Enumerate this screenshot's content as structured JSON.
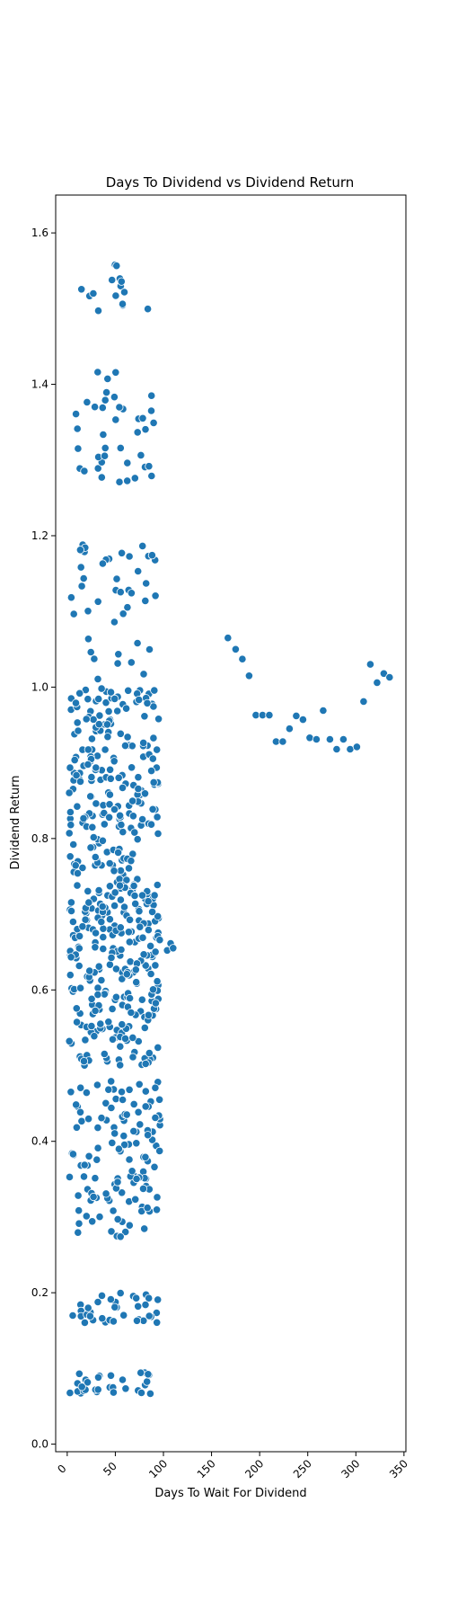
{
  "chart_data": {
    "type": "scatter",
    "title": "Days To Dividend vs Dividend Return",
    "xlabel": "Days To Wait For Dividend",
    "ylabel": "Dividend Return",
    "xlim": [
      -12,
      352
    ],
    "ylim": [
      -0.01,
      1.65
    ],
    "xticks": [
      0,
      50,
      100,
      150,
      200,
      250,
      300,
      350
    ],
    "yticks": [
      0.0,
      0.2,
      0.4,
      0.6,
      0.8,
      1.0,
      1.2,
      1.4,
      1.6
    ],
    "grid": false,
    "legend": "none",
    "colors": {
      "marker": "#1f77b4",
      "marker_edge": "#ffffff",
      "axis": "#000000"
    },
    "clusters": [
      {
        "x_min": 2,
        "x_max": 90,
        "y_min": 1.49,
        "y_max": 1.565,
        "count": 16
      },
      {
        "x_min": 2,
        "x_max": 90,
        "y_min": 1.27,
        "y_max": 1.42,
        "count": 40
      },
      {
        "x_min": 2,
        "x_max": 97,
        "y_min": 1.01,
        "y_max": 1.19,
        "count": 42
      },
      {
        "x_min": 2,
        "x_max": 95,
        "y_min": 0.5,
        "y_max": 1.0,
        "count": 450
      },
      {
        "x_min": 90,
        "x_max": 120,
        "y_min": 0.65,
        "y_max": 0.69,
        "count": 4
      },
      {
        "x_min": 2,
        "x_max": 97,
        "y_min": 0.27,
        "y_max": 0.48,
        "count": 125
      },
      {
        "x_min": 2,
        "x_max": 97,
        "y_min": 0.16,
        "y_max": 0.2,
        "count": 36
      },
      {
        "x_min": 2,
        "x_max": 90,
        "y_min": 0.065,
        "y_max": 0.095,
        "count": 32
      }
    ],
    "points": [
      {
        "x": 167,
        "y": 1.065
      },
      {
        "x": 175,
        "y": 1.05
      },
      {
        "x": 182,
        "y": 1.037
      },
      {
        "x": 189,
        "y": 1.015
      },
      {
        "x": 196,
        "y": 0.963
      },
      {
        "x": 203,
        "y": 0.963
      },
      {
        "x": 210,
        "y": 0.963
      },
      {
        "x": 217,
        "y": 0.928
      },
      {
        "x": 224,
        "y": 0.928
      },
      {
        "x": 231,
        "y": 0.945
      },
      {
        "x": 238,
        "y": 0.962
      },
      {
        "x": 245,
        "y": 0.957
      },
      {
        "x": 252,
        "y": 0.933
      },
      {
        "x": 259,
        "y": 0.931
      },
      {
        "x": 266,
        "y": 0.969
      },
      {
        "x": 273,
        "y": 0.931
      },
      {
        "x": 280,
        "y": 0.918
      },
      {
        "x": 287,
        "y": 0.931
      },
      {
        "x": 294,
        "y": 0.918
      },
      {
        "x": 301,
        "y": 0.921
      },
      {
        "x": 308,
        "y": 0.981
      },
      {
        "x": 315,
        "y": 1.03
      },
      {
        "x": 322,
        "y": 1.006
      },
      {
        "x": 329,
        "y": 1.018
      },
      {
        "x": 335,
        "y": 1.013
      }
    ]
  }
}
